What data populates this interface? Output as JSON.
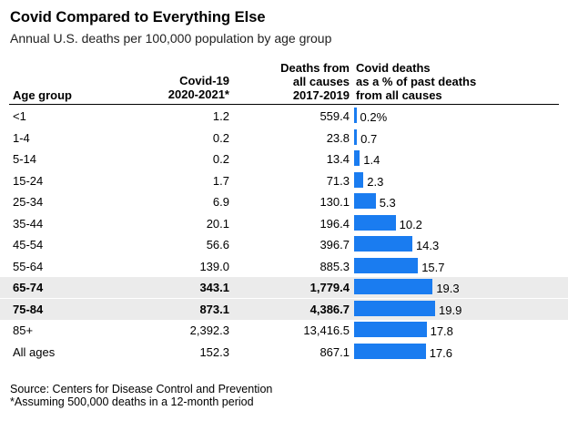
{
  "title": "Covid Compared to Everything Else",
  "subtitle": "Annual U.S. deaths per 100,000 population by age group",
  "headers": {
    "age": "Age group",
    "covid_1": "Covid-19",
    "covid_2": "2020-2021*",
    "deaths_1": "Deaths from",
    "deaths_2": "all causes",
    "deaths_3": "2017-2019",
    "pct_1": "Covid deaths",
    "pct_2": "as a % of past deaths",
    "pct_3": "from all causes"
  },
  "colors": {
    "bar": "#1a7cf0",
    "highlight": "#ebebeb"
  },
  "chart_data": {
    "type": "table",
    "title": "Covid Compared to Everything Else",
    "subtitle": "Annual U.S. deaths per 100,000 population by age group",
    "columns": [
      "Age group",
      "Covid-19 2020-2021*",
      "Deaths from all causes 2017-2019",
      "Covid deaths as a % of past deaths from all causes"
    ],
    "rows": [
      {
        "age": "<1",
        "covid": "1.2",
        "deaths": "559.4",
        "pct": 0.2,
        "pct_label": "0.2%",
        "highlight": false
      },
      {
        "age": "1-4",
        "covid": "0.2",
        "deaths": "23.8",
        "pct": 0.7,
        "pct_label": "0.7",
        "highlight": false
      },
      {
        "age": "5-14",
        "covid": "0.2",
        "deaths": "13.4",
        "pct": 1.4,
        "pct_label": "1.4",
        "highlight": false
      },
      {
        "age": "15-24",
        "covid": "1.7",
        "deaths": "71.3",
        "pct": 2.3,
        "pct_label": "2.3",
        "highlight": false
      },
      {
        "age": "25-34",
        "covid": "6.9",
        "deaths": "130.1",
        "pct": 5.3,
        "pct_label": "5.3",
        "highlight": false
      },
      {
        "age": "35-44",
        "covid": "20.1",
        "deaths": "196.4",
        "pct": 10.2,
        "pct_label": "10.2",
        "highlight": false
      },
      {
        "age": "45-54",
        "covid": "56.6",
        "deaths": "396.7",
        "pct": 14.3,
        "pct_label": "14.3",
        "highlight": false
      },
      {
        "age": "55-64",
        "covid": "139.0",
        "deaths": "885.3",
        "pct": 15.7,
        "pct_label": "15.7",
        "highlight": false
      },
      {
        "age": "65-74",
        "covid": "343.1",
        "deaths": "1,779.4",
        "pct": 19.3,
        "pct_label": "19.3",
        "highlight": true
      },
      {
        "age": "75-84",
        "covid": "873.1",
        "deaths": "4,386.7",
        "pct": 19.9,
        "pct_label": "19.9",
        "highlight": true
      },
      {
        "age": "85+",
        "covid": "2,392.3",
        "deaths": "13,416.5",
        "pct": 17.8,
        "pct_label": "17.8",
        "highlight": false
      },
      {
        "age": "All ages",
        "covid": "152.3",
        "deaths": "867.1",
        "pct": 17.6,
        "pct_label": "17.6",
        "highlight": false
      }
    ],
    "bar_max": 19.9
  },
  "source_1": "Source: Centers for Disease Control and Prevention",
  "source_2": "*Assuming 500,000 deaths in a 12-month period"
}
